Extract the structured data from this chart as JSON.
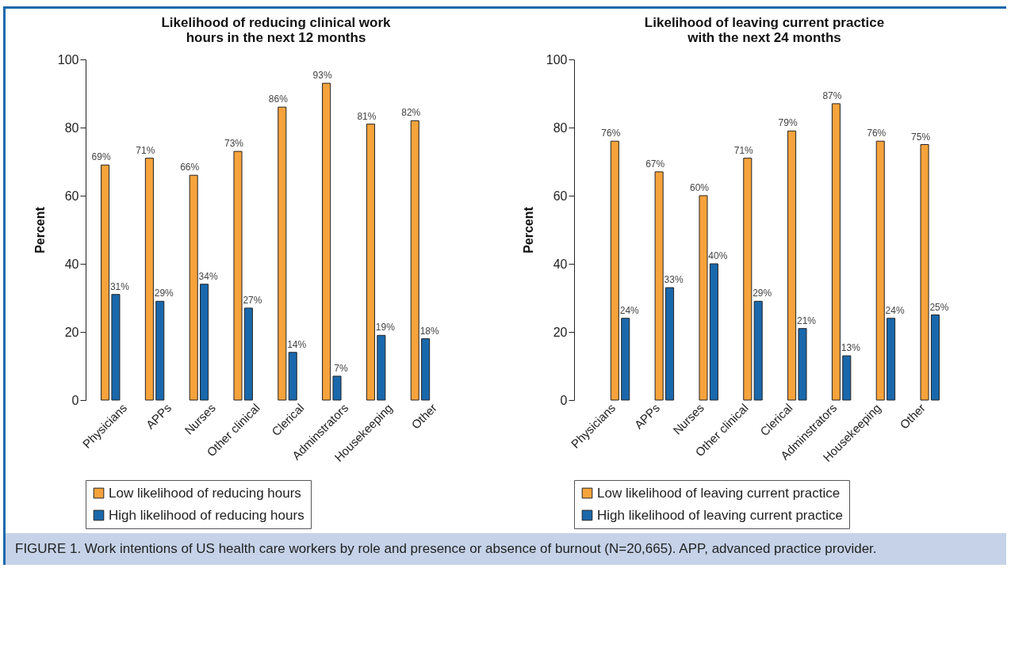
{
  "chart_data": [
    {
      "type": "bar",
      "title": "Likelihood of reducing clinical work hours in the next 12 months",
      "ylabel": "Percent",
      "categories": [
        "Physicians",
        "APPs",
        "Nurses",
        "Other clinical",
        "Clerical",
        "Adminstrators",
        "Housekeeping",
        "Other"
      ],
      "series": [
        {
          "name": "Low likelihood of reducing hours",
          "color": "#f7a33c",
          "values": [
            69,
            71,
            66,
            73,
            86,
            93,
            81,
            82
          ],
          "value_labels": [
            "69%",
            "71%",
            "66%",
            "73%",
            "86%",
            "93%",
            "81%",
            "82%"
          ]
        },
        {
          "name": "High likelihood of reducing hours",
          "color": "#1a68ac",
          "values": [
            31,
            29,
            34,
            27,
            14,
            7,
            19,
            18
          ],
          "value_labels": [
            "31%",
            "29%",
            "34%",
            "27%",
            "14%",
            "7%",
            "19%",
            "18%"
          ]
        }
      ],
      "ylim": [
        0,
        100
      ],
      "yticks": [
        0,
        20,
        40,
        60,
        80,
        100
      ],
      "grid": false,
      "legend": "bottom",
      "annotations": [
        "FIGURE 1. Work intentions of US health care workers by role and presence or absence of burnout (N=20,665). APP, advanced practice provider."
      ]
    },
    {
      "type": "bar",
      "title": "Likelihood of leaving current practice with the next 24 months",
      "ylabel": "Percent",
      "categories": [
        "Physicians",
        "APPs",
        "Nurses",
        "Other clinical",
        "Clerical",
        "Adminstrators",
        "Housekeeping",
        "Other"
      ],
      "series": [
        {
          "name": "Low likelihood of leaving current practice",
          "color": "#f7a33c",
          "values": [
            76,
            67,
            60,
            71,
            79,
            87,
            76,
            75
          ],
          "value_labels": [
            "76%",
            "67%",
            "60%",
            "71%",
            "79%",
            "87%",
            "76%",
            "75%"
          ]
        },
        {
          "name": "High likelihood of leaving current practice",
          "color": "#1a68ac",
          "values": [
            24,
            33,
            40,
            29,
            21,
            13,
            24,
            25
          ],
          "value_labels": [
            "24%",
            "33%",
            "40%",
            "29%",
            "21%",
            "13%",
            "24%",
            "25%"
          ]
        }
      ],
      "ylim": [
        0,
        100
      ],
      "yticks": [
        0,
        20,
        40,
        60,
        80,
        100
      ],
      "grid": false,
      "legend": "bottom"
    }
  ]
}
